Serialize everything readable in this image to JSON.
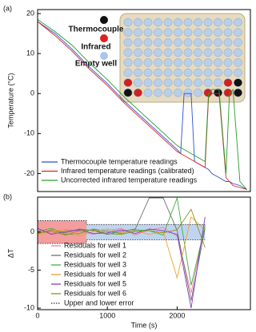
{
  "chart_data": [
    {
      "type": "line",
      "panel_label": "(a)",
      "ylabel": "Temperature (°C)",
      "xlim": [
        0,
        3050
      ],
      "ylim": [
        -24.5,
        21
      ],
      "yticks": [
        20,
        10,
        0,
        -10,
        -20
      ],
      "inset_labels": [
        "Thermocouple",
        "Infrared",
        "Empty well"
      ],
      "series": [
        {
          "name": "Thermocouple temperature readings",
          "color": "#2b4fd8",
          "x": [
            0,
            250,
            500,
            750,
            1000,
            1250,
            1500,
            1750,
            2000,
            2050,
            2100,
            2200,
            2250,
            2400,
            2450,
            2500,
            2600,
            2700,
            2750,
            2800,
            2900,
            3000
          ],
          "values": [
            18,
            15,
            11,
            6.5,
            2.5,
            -2,
            -6,
            -10,
            -14,
            -15,
            0,
            0,
            -17,
            -18.5,
            -19,
            -20,
            -21,
            -22,
            -22,
            -22.5,
            -23,
            -24
          ]
        },
        {
          "name": "Infrared temperature readings (calibrated)",
          "color": "#e02020",
          "x": [
            0,
            250,
            500,
            750,
            1000,
            1250,
            1500,
            1750,
            2000,
            2050,
            2100,
            2200,
            2250,
            2400,
            2450,
            2500,
            2600,
            2700,
            2750,
            2800,
            2900,
            3000
          ],
          "values": [
            18,
            14.5,
            10.5,
            6,
            2,
            -2.5,
            -6.5,
            -10.5,
            -14.5,
            -15,
            -15.5,
            -16.5,
            -17,
            -18.5,
            -1,
            0,
            0,
            -21,
            -22,
            -23,
            -23.5,
            -24
          ]
        },
        {
          "name": "Uncorrected infrared temperature readings",
          "color": "#2a9a2a",
          "x": [
            0,
            250,
            500,
            750,
            1000,
            1250,
            1500,
            1750,
            2000,
            2050,
            2100,
            2200,
            2250,
            2400,
            2450,
            2500,
            2600,
            2700,
            2750,
            2800,
            2900,
            3000
          ],
          "values": [
            18.5,
            15.5,
            12,
            7.5,
            3.5,
            -1,
            -5,
            -9,
            -13,
            -13.5,
            -14,
            -15,
            -15.5,
            -17,
            0,
            1,
            1,
            -20,
            0,
            1,
            -22,
            -24
          ]
        }
      ]
    },
    {
      "type": "line",
      "panel_label": "(b)",
      "ylabel": "ΔT",
      "xlabel": "Time (s)",
      "xlim": [
        0,
        3050
      ],
      "ylim": [
        -10.2,
        4.6
      ],
      "yticks": [
        0,
        -5,
        -10
      ],
      "xticks": [
        0,
        1000,
        2000
      ],
      "bands": [
        {
          "x": [
            0,
            700
          ],
          "y": [
            -1.5,
            1.5
          ],
          "color": "#f07c7c"
        },
        {
          "x": [
            700,
            2400
          ],
          "y": [
            -1,
            1
          ],
          "color": "#a9c6ea"
        }
      ],
      "series": [
        {
          "name": "Residuals for well 1",
          "color": "#f080a0",
          "x": [
            0,
            200,
            400,
            600,
            800,
            1000,
            1200,
            1400,
            1600,
            1800,
            2000,
            2200,
            2400
          ],
          "values": [
            0.3,
            -0.2,
            0.4,
            0.1,
            -0.3,
            0.2,
            0.5,
            -0.4,
            0.3,
            0.6,
            -0.5,
            -8,
            1
          ]
        },
        {
          "name": "Residuals for well 2",
          "color": "#707070",
          "x": [
            0,
            200,
            400,
            600,
            800,
            1000,
            1200,
            1400,
            1600,
            1800,
            2000,
            2200,
            2400
          ],
          "values": [
            -0.2,
            0.3,
            -0.1,
            0.4,
            0.2,
            -0.3,
            0.1,
            0.4,
            4.5,
            4.5,
            0.2,
            -9,
            0.5
          ]
        },
        {
          "name": "Residuals for well 3",
          "color": "#40b040",
          "x": [
            0,
            200,
            400,
            600,
            800,
            1000,
            1200,
            1400,
            1600,
            1800,
            2000,
            2200,
            2400
          ],
          "values": [
            0.1,
            0.5,
            -0.3,
            -0.2,
            0.4,
            0.1,
            -0.2,
            0.3,
            0.2,
            -0.4,
            4.5,
            -7,
            0.8
          ]
        },
        {
          "name": "Residuals for well 4",
          "color": "#f0a030",
          "x": [
            0,
            200,
            400,
            600,
            800,
            1000,
            1200,
            1400,
            1600,
            1800,
            2000,
            2200,
            2400
          ],
          "values": [
            -0.4,
            0.2,
            0.3,
            -0.5,
            0.1,
            0.4,
            -0.1,
            0.2,
            -0.3,
            0.1,
            -6,
            2,
            0.3
          ]
        },
        {
          "name": "Residuals for well 5",
          "color": "#8040c0",
          "x": [
            0,
            200,
            400,
            600,
            800,
            1000,
            1200,
            1400,
            1600,
            1800,
            2000,
            2200,
            2400
          ],
          "values": [
            0.5,
            -0.3,
            0.1,
            0.3,
            -0.2,
            -0.1,
            0.3,
            -0.2,
            0.4,
            0.2,
            -0.3,
            -10,
            2
          ]
        },
        {
          "name": "Residuals for well 6",
          "color": "#909020",
          "x": [
            0,
            200,
            400,
            600,
            800,
            1000,
            1200,
            1400,
            1600,
            1800,
            2000,
            2200,
            2400
          ],
          "values": [
            -0.1,
            0.1,
            -0.4,
            0.2,
            0.3,
            -0.2,
            -0.3,
            0.1,
            0.2,
            -0.1,
            0.3,
            3,
            -2
          ]
        },
        {
          "name": "Upper and lower error",
          "color": "#333333",
          "dotted": true,
          "x": [
            0,
            700,
            700,
            2400
          ],
          "values": [
            1.5,
            1.5,
            1,
            1
          ],
          "lower": [
            -1.5,
            -1.5,
            -1,
            -1
          ]
        }
      ]
    }
  ]
}
